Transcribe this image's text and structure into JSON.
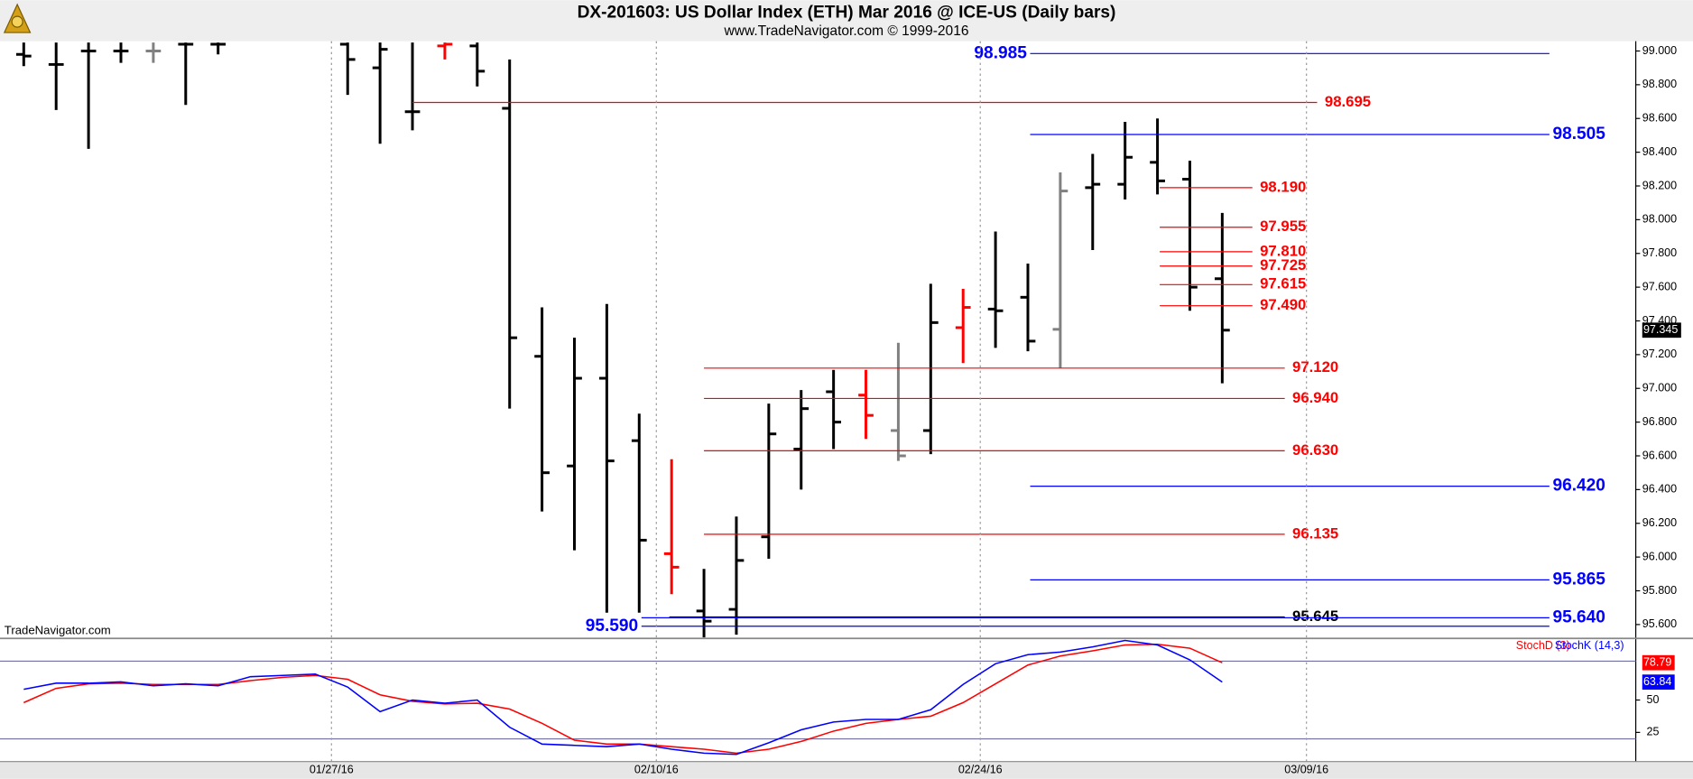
{
  "chart_data": [
    {
      "type": "ohlc",
      "title": "DX-201603:  US Dollar Index (ETH) Mar 2016 @ ICE-US  (Daily bars)",
      "subtitle": "www.TradeNavigator.com © 1999-2016",
      "watermark": "TradeNavigator.com",
      "x": [
        0,
        1,
        2,
        3,
        4,
        5,
        6,
        10,
        11,
        12,
        13,
        14,
        15,
        16,
        17,
        18,
        19,
        20,
        21,
        22,
        23,
        24,
        25,
        26,
        27,
        28,
        29,
        30,
        31,
        32,
        33,
        34,
        35,
        36,
        37
      ],
      "open": [
        98.98,
        98.92,
        99.0,
        99.0,
        99.0,
        99.04,
        99.04,
        99.04,
        98.9,
        98.64,
        99.03,
        99.03,
        98.66,
        97.19,
        96.54,
        97.06,
        96.69,
        96.02,
        95.68,
        95.69,
        96.12,
        96.64,
        96.98,
        96.96,
        96.75,
        96.75,
        97.36,
        97.47,
        97.54,
        97.35,
        98.19,
        98.21,
        98.34,
        98.24,
        97.65
      ],
      "high": [
        99.05,
        99.05,
        99.05,
        99.05,
        99.05,
        99.05,
        99.05,
        99.05,
        99.05,
        99.05,
        99.05,
        99.05,
        98.95,
        97.48,
        97.3,
        97.5,
        96.85,
        96.58,
        95.93,
        96.24,
        96.91,
        96.99,
        97.11,
        97.11,
        97.27,
        97.62,
        97.59,
        97.93,
        97.74,
        98.28,
        98.39,
        98.58,
        98.6,
        98.35,
        98.04
      ],
      "low": [
        98.91,
        98.65,
        98.42,
        98.93,
        98.93,
        98.68,
        98.98,
        98.74,
        98.45,
        98.53,
        98.95,
        98.79,
        96.88,
        96.27,
        96.04,
        95.67,
        95.67,
        95.78,
        95.52,
        95.54,
        95.99,
        96.4,
        96.64,
        96.7,
        96.57,
        96.61,
        97.15,
        97.24,
        97.22,
        97.12,
        97.82,
        98.12,
        98.15,
        97.46,
        97.03
      ],
      "close": [
        98.97,
        98.92,
        99.0,
        99.0,
        99.0,
        99.04,
        99.04,
        98.95,
        99.01,
        98.64,
        99.04,
        98.88,
        97.3,
        96.5,
        97.06,
        96.57,
        96.1,
        95.94,
        95.62,
        95.98,
        96.73,
        96.88,
        96.8,
        96.84,
        96.6,
        97.39,
        97.48,
        97.46,
        97.28,
        98.17,
        98.21,
        98.37,
        98.23,
        97.6,
        97.345
      ],
      "colors": [
        "#000000",
        "#000000",
        "#000000",
        "#000000",
        "#808080",
        "#000000",
        "#000000",
        "#000000",
        "#000000",
        "#000000",
        "#ff0000",
        "#000000",
        "#000000",
        "#000000",
        "#000000",
        "#000000",
        "#000000",
        "#ff0000",
        "#000000",
        "#000000",
        "#000000",
        "#000000",
        "#000000",
        "#ff0000",
        "#808080",
        "#000000",
        "#ff0000",
        "#000000",
        "#000000",
        "#808080",
        "#000000",
        "#000000",
        "#000000",
        "#000000",
        "#000000"
      ],
      "xlim": [
        -0.7333,
        49.7667
      ],
      "ylim": [
        95.524,
        99.058
      ],
      "yticks": [
        {
          "value": 95.6,
          "label": "95.600"
        },
        {
          "value": 95.8,
          "label": "95.800"
        },
        {
          "value": 96.0,
          "label": "96.000"
        },
        {
          "value": 96.2,
          "label": "96.200"
        },
        {
          "value": 96.4,
          "label": "96.400"
        },
        {
          "value": 96.6,
          "label": "96.600"
        },
        {
          "value": 96.8,
          "label": "96.800"
        },
        {
          "value": 97.0,
          "label": "97.000"
        },
        {
          "value": 97.2,
          "label": "97.200"
        },
        {
          "value": 97.4,
          "label": "97.400"
        },
        {
          "value": 97.6,
          "label": "97.600"
        },
        {
          "value": 97.8,
          "label": "97.800"
        },
        {
          "value": 98.0,
          "label": "98.000"
        },
        {
          "value": 98.2,
          "label": "98.200"
        },
        {
          "value": 98.4,
          "label": "98.400"
        },
        {
          "value": 98.6,
          "label": "98.600"
        },
        {
          "value": 98.8,
          "label": "98.800"
        },
        {
          "value": 99.0,
          "label": "99.000"
        }
      ],
      "levels": [
        {
          "value": 98.985,
          "label": "98.985",
          "color": "#0000ff",
          "from": 31.07,
          "to": 47.1,
          "side": "left"
        },
        {
          "value": 98.695,
          "label": "98.695",
          "color": "#ff0000",
          "from": 12,
          "to": 39.93,
          "side": "right"
        },
        {
          "value": 98.505,
          "label": "98.505",
          "color": "#0000ff",
          "from": 31.07,
          "to": 47.1,
          "side": "right"
        },
        {
          "value": 98.19,
          "label": "98.190",
          "color": "#ff0000",
          "from": 35.07,
          "to": 37.93,
          "side": "right"
        },
        {
          "value": 97.955,
          "label": "97.955",
          "color": "#ff0000",
          "from": 35.07,
          "to": 37.93,
          "side": "right"
        },
        {
          "value": 97.81,
          "label": "97.810",
          "color": "#ff0000",
          "from": 35.07,
          "to": 37.93,
          "side": "right"
        },
        {
          "value": 97.725,
          "label": "97.725",
          "color": "#ff0000",
          "from": 35.07,
          "to": 37.93,
          "side": "right"
        },
        {
          "value": 97.615,
          "label": "97.615",
          "color": "#ff0000",
          "from": 35.07,
          "to": 37.93,
          "side": "right"
        },
        {
          "value": 97.49,
          "label": "97.490",
          "color": "#ff0000",
          "from": 35.07,
          "to": 37.93,
          "side": "right"
        },
        {
          "value": 97.12,
          "label": "97.120",
          "color": "#ff0000",
          "from": 21,
          "to": 38.93,
          "side": "right"
        },
        {
          "value": 96.94,
          "label": "96.940",
          "color": "#ff0000",
          "from": 21,
          "to": 38.93,
          "side": "right"
        },
        {
          "value": 96.63,
          "label": "96.630",
          "color": "#ff0000",
          "from": 21,
          "to": 38.93,
          "side": "right"
        },
        {
          "value": 96.42,
          "label": "96.420",
          "color": "#0000ff",
          "from": 31.07,
          "to": 47.1,
          "side": "right"
        },
        {
          "value": 96.135,
          "label": "96.135",
          "color": "#ff0000",
          "from": 21,
          "to": 38.93,
          "side": "right"
        },
        {
          "value": 95.865,
          "label": "95.865",
          "color": "#0000ff",
          "from": 31.07,
          "to": 47.1,
          "side": "right"
        },
        {
          "value": 95.645,
          "label": "95.645",
          "color": "#000000",
          "from": 19.93,
          "to": 38.93,
          "side": "right"
        },
        {
          "value": 95.64,
          "label": "95.640",
          "color": "#0000ff",
          "from": 19.07,
          "to": 47.1,
          "side": "right"
        },
        {
          "value": 95.59,
          "label": "95.590",
          "color": "#0000ff",
          "from": 19.07,
          "to": 47.1,
          "side": "left"
        }
      ]
    },
    {
      "type": "line",
      "x": [
        0,
        1,
        2,
        3,
        4,
        5,
        6,
        7,
        8,
        9,
        10,
        11,
        12,
        13,
        14,
        15,
        16,
        17,
        18,
        19,
        20,
        21,
        22,
        23,
        24,
        25,
        26,
        27,
        28,
        29,
        30,
        31,
        32,
        33,
        34,
        35,
        36,
        37
      ],
      "series": [
        {
          "name": "StochD (3)",
          "color": "#ff0000",
          "values": [
            48,
            59,
            62.5,
            63,
            62,
            62,
            62,
            65,
            67.5,
            69,
            66,
            54,
            49,
            47,
            47.5,
            43,
            32,
            19,
            16,
            16,
            14,
            12,
            9,
            12,
            18,
            26,
            32,
            35,
            37.5,
            48,
            62.5,
            77,
            84,
            88,
            92.5,
            93,
            90,
            78.79
          ]
        },
        {
          "name": "StochK (14,3)",
          "color": "#0000ff",
          "values": [
            58.3,
            63,
            63,
            64,
            61,
            62.5,
            61,
            68,
            69,
            70,
            60,
            41,
            50,
            47.5,
            50,
            29,
            16,
            15,
            14,
            16,
            12,
            9,
            8,
            17,
            27,
            33,
            35,
            35,
            42.5,
            62,
            78,
            85,
            87,
            91,
            96,
            92.5,
            81,
            63.84
          ]
        }
      ],
      "xlim": [
        -0.7333,
        49.7667
      ],
      "ylim": [
        2.5,
        96.7
      ],
      "yticks": [
        25,
        50
      ],
      "hlines": [
        80,
        20
      ],
      "xticks": [
        {
          "value": 9.5,
          "label": "01/27/16"
        },
        {
          "value": 19.53,
          "label": "02/10/16"
        },
        {
          "value": 29.53,
          "label": "02/24/16"
        },
        {
          "value": 39.6,
          "label": "03/09/16"
        }
      ]
    }
  ]
}
